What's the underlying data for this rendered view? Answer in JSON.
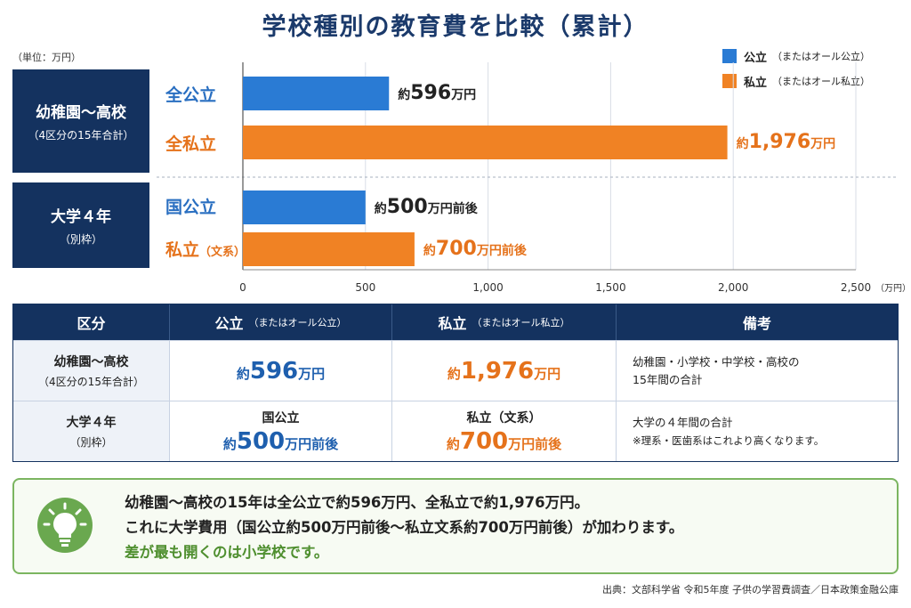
{
  "title": "学校種別の教育費を比較（累計）",
  "unit_note": "（単位：万円）",
  "legend": [
    {
      "label": "公立",
      "sub": "（またはオール公立）",
      "color": "#2a7bd4"
    },
    {
      "label": "私立",
      "sub": "（またはオール私立）",
      "color": "#f08224"
    }
  ],
  "groups": [
    {
      "main": "幼稚園〜高校",
      "sub": "（4区分の15年合計）"
    },
    {
      "main": "大学４年",
      "sub": "（別枠）"
    }
  ],
  "bar_labels": [
    {
      "text": "全公立",
      "small": ""
    },
    {
      "text": "全私立",
      "small": ""
    },
    {
      "text": "国公立",
      "small": ""
    },
    {
      "text": "私立",
      "small": "（文系）"
    }
  ],
  "value_labels": [
    {
      "pre": "約",
      "num": "596",
      "post": "万円"
    },
    {
      "pre": "約",
      "num": "1,976",
      "post": "万円"
    },
    {
      "pre": "約",
      "num": "500",
      "post": "万円前後"
    },
    {
      "pre": "約",
      "num": "700",
      "post": "万円前後"
    }
  ],
  "chart_data": {
    "type": "bar",
    "orientation": "horizontal",
    "categories": [
      "全公立",
      "全私立",
      "国公立",
      "私立（文系）"
    ],
    "values": [
      596,
      1976,
      500,
      700
    ],
    "colors": [
      "#2a7bd4",
      "#f08224",
      "#2a7bd4",
      "#f08224"
    ],
    "xticks": [
      "0",
      "500",
      "1,000",
      "1,500",
      "2,000",
      "2,500"
    ],
    "xlim": [
      0,
      2500
    ],
    "x_unit": "（万円）",
    "grid": true,
    "legend_position": "top-right"
  },
  "table": {
    "headers": [
      {
        "main": "区分",
        "sub": ""
      },
      {
        "main": "公立",
        "sub": "（またはオール公立）"
      },
      {
        "main": "私立",
        "sub": "（またはオール私立）"
      },
      {
        "main": "備考",
        "sub": ""
      }
    ],
    "rows": [
      {
        "cat_main": "幼稚園〜高校",
        "cat_sub": "（4区分の15年合計）",
        "pub_top": "",
        "pub": {
          "pre": "約",
          "num": "596",
          "post": "万円"
        },
        "pri_top": "",
        "pri": {
          "pre": "約",
          "num": "1,976",
          "post": "万円"
        },
        "note1": "幼稚園・小学校・中学校・高校の",
        "note2": "15年間の合計"
      },
      {
        "cat_main": "大学４年",
        "cat_sub": "（別枠）",
        "pub_top": "国公立",
        "pub": {
          "pre": "約",
          "num": "500",
          "post": "万円前後"
        },
        "pri_top": "私立（文系）",
        "pri": {
          "pre": "約",
          "num": "700",
          "post": "万円前後"
        },
        "note1": "大学の４年間の合計",
        "note2": "※理系・医歯系はこれより高くなります。"
      }
    ]
  },
  "summary": {
    "line1": "幼稚園〜高校の15年は全公立で約596万円、全私立で約1,976万円。",
    "line2": "これに大学費用（国公立約500万円前後〜私立文系約700万円前後）が加わります。",
    "line3": "差が最も開くのは小学校です。",
    "icon": "lightbulb-icon"
  },
  "source": "出典：文部科学省  令和5年度 子供の学習費調査／日本政策金融公庫"
}
